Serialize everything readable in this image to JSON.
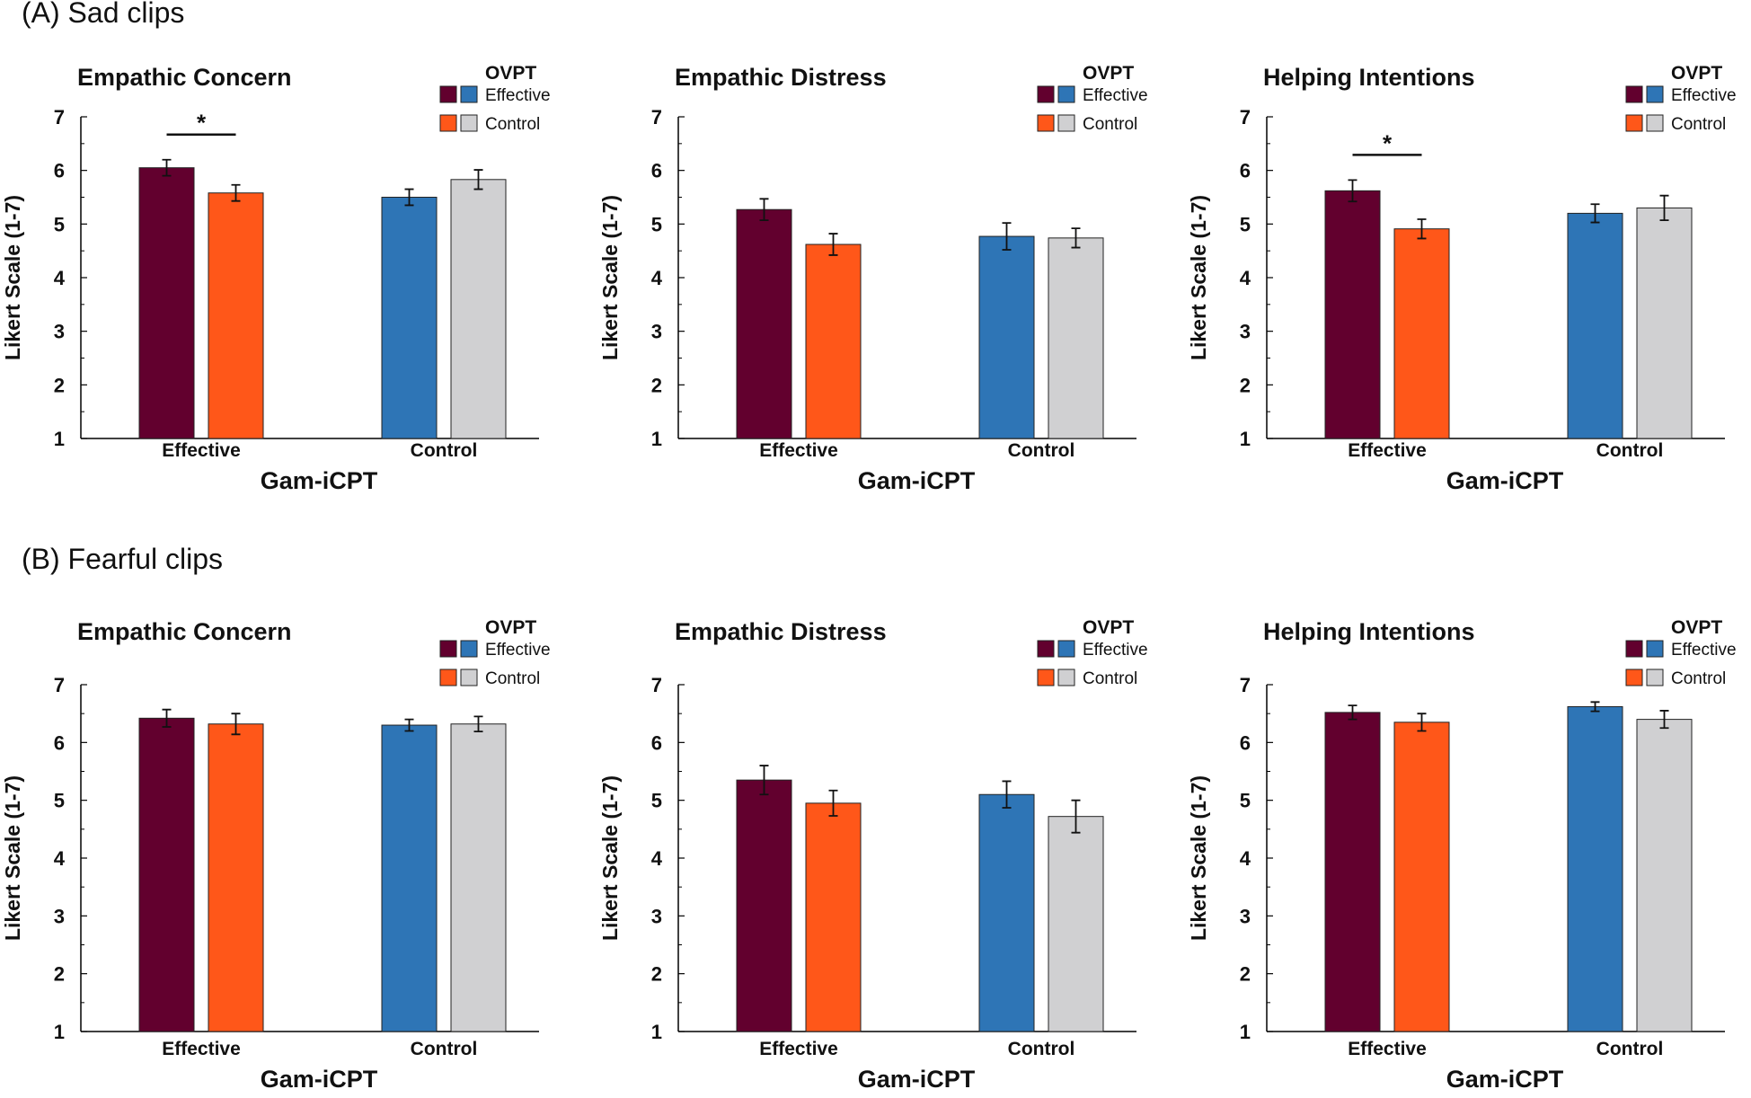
{
  "sections": [
    {
      "label": "(A) Sad clips"
    },
    {
      "label": "(B) Fearful clips"
    }
  ],
  "colors": {
    "effective_effective": "#62002e",
    "effective_control": "#ff5719",
    "control_effective": "#2e75b6",
    "control_control": "#d0d0d2",
    "axis": "#000000"
  },
  "legend": {
    "title": "OVPT",
    "effective": "Effective",
    "control": "Control"
  },
  "chart_data": [
    {
      "section": "(A) Sad clips",
      "type": "bar",
      "title": "Empathic Concern",
      "xlabel": "Gam-iCPT",
      "ylabel": "Likert  Scale (1-7)",
      "ylim": [
        1,
        7
      ],
      "yticks": [
        "1",
        "2",
        "3",
        "4",
        "5",
        "6",
        "7"
      ],
      "categories": [
        "Effective",
        "Control"
      ],
      "series": [
        {
          "name": "Effective",
          "values": [
            6.05,
            5.5
          ],
          "errors": [
            0.15,
            0.15
          ]
        },
        {
          "name": "Control",
          "values": [
            5.58,
            5.83
          ],
          "errors": [
            0.15,
            0.18
          ]
        }
      ],
      "significance": [
        {
          "category": "Effective",
          "label": "*"
        }
      ]
    },
    {
      "section": "(A) Sad clips",
      "type": "bar",
      "title": "Empathic Distress",
      "xlabel": "Gam-iCPT",
      "ylabel": "Likert  Scale (1-7)",
      "ylim": [
        1,
        7
      ],
      "yticks": [
        "1",
        "2",
        "3",
        "4",
        "5",
        "6",
        "7"
      ],
      "categories": [
        "Effective",
        "Control"
      ],
      "series": [
        {
          "name": "Effective",
          "values": [
            5.27,
            4.77
          ],
          "errors": [
            0.2,
            0.25
          ]
        },
        {
          "name": "Control",
          "values": [
            4.62,
            4.74
          ],
          "errors": [
            0.2,
            0.18
          ]
        }
      ],
      "significance": []
    },
    {
      "section": "(A) Sad clips",
      "type": "bar",
      "title": "Helping Intentions",
      "xlabel": "Gam-iCPT",
      "ylabel": "Likert  Scale (1-7)",
      "ylim": [
        1,
        7
      ],
      "yticks": [
        "1",
        "2",
        "3",
        "4",
        "5",
        "6",
        "7"
      ],
      "categories": [
        "Effective",
        "Control"
      ],
      "series": [
        {
          "name": "Effective",
          "values": [
            5.62,
            5.2
          ],
          "errors": [
            0.2,
            0.17
          ]
        },
        {
          "name": "Control",
          "values": [
            4.91,
            5.3
          ],
          "errors": [
            0.18,
            0.23
          ]
        }
      ],
      "significance": [
        {
          "category": "Effective",
          "label": "*"
        }
      ]
    },
    {
      "section": "(B) Fearful clips",
      "type": "bar",
      "title": "Empathic Concern",
      "xlabel": "Gam-iCPT",
      "ylabel": "Likert  Scale (1-7)",
      "ylim": [
        1,
        7
      ],
      "yticks": [
        "1",
        "2",
        "3",
        "4",
        "5",
        "6",
        "7"
      ],
      "categories": [
        "Effective",
        "Control"
      ],
      "series": [
        {
          "name": "Effective",
          "values": [
            6.42,
            6.3
          ],
          "errors": [
            0.15,
            0.1
          ]
        },
        {
          "name": "Control",
          "values": [
            6.32,
            6.32
          ],
          "errors": [
            0.18,
            0.13
          ]
        }
      ],
      "significance": []
    },
    {
      "section": "(B) Fearful clips",
      "type": "bar",
      "title": "Empathic Distress",
      "xlabel": "Gam-iCPT",
      "ylabel": "Likert  Scale (1-7)",
      "ylim": [
        1,
        7
      ],
      "yticks": [
        "1",
        "2",
        "3",
        "4",
        "5",
        "6",
        "7"
      ],
      "categories": [
        "Effective",
        "Control"
      ],
      "series": [
        {
          "name": "Effective",
          "values": [
            5.35,
            5.1
          ],
          "errors": [
            0.25,
            0.23
          ]
        },
        {
          "name": "Control",
          "values": [
            4.95,
            4.72
          ],
          "errors": [
            0.22,
            0.28
          ]
        }
      ],
      "significance": []
    },
    {
      "section": "(B) Fearful clips",
      "type": "bar",
      "title": "Helping Intentions",
      "xlabel": "Gam-iCPT",
      "ylabel": "Likert  Scale (1-7)",
      "ylim": [
        1,
        7
      ],
      "yticks": [
        "1",
        "2",
        "3",
        "4",
        "5",
        "6",
        "7"
      ],
      "categories": [
        "Effective",
        "Control"
      ],
      "series": [
        {
          "name": "Effective",
          "values": [
            6.52,
            6.62
          ],
          "errors": [
            0.12,
            0.08
          ]
        },
        {
          "name": "Control",
          "values": [
            6.35,
            6.4
          ],
          "errors": [
            0.15,
            0.15
          ]
        }
      ],
      "significance": []
    }
  ]
}
